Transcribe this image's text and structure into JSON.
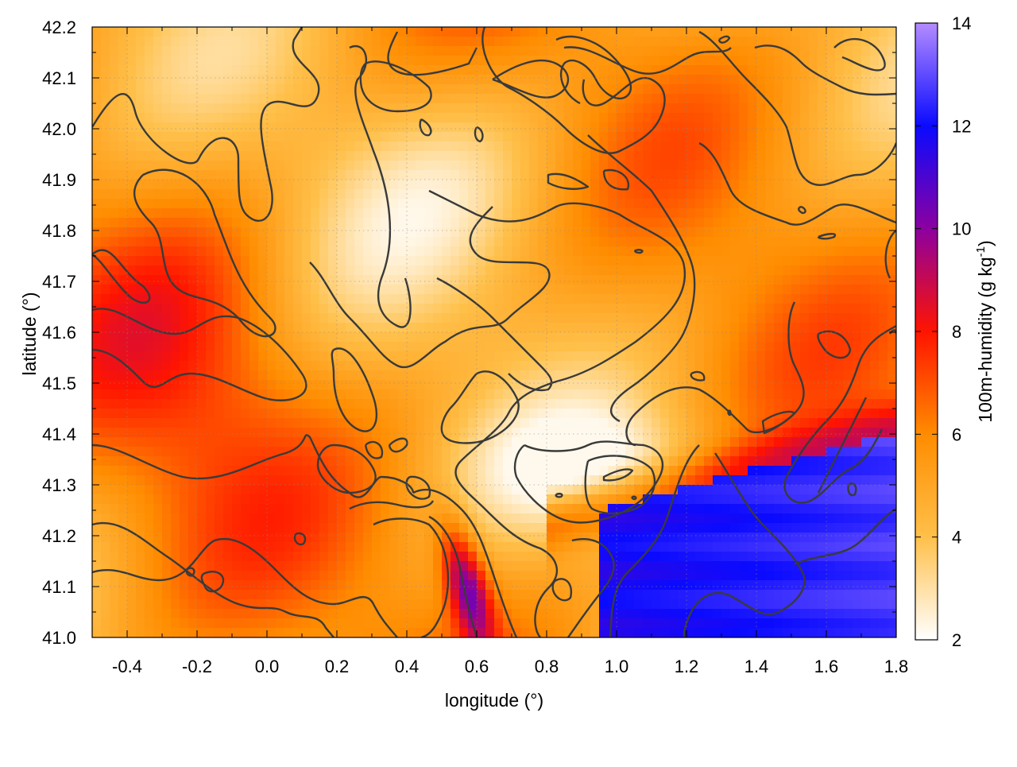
{
  "chart_data": {
    "type": "heatmap",
    "title": "",
    "xlabel": "longitude (°)",
    "ylabel": "latitude (°)",
    "colorbar_label_main": "100m-humidity (g kg",
    "colorbar_label_sup": "-1",
    "colorbar_label_end": ")",
    "xlim": [
      -0.5,
      1.8
    ],
    "ylim": [
      41.0,
      42.2
    ],
    "zlim": [
      2,
      14
    ],
    "x_ticks": [
      -0.4,
      -0.2,
      0.0,
      0.2,
      0.4,
      0.6,
      0.8,
      1.0,
      1.2,
      1.4,
      1.6,
      1.8
    ],
    "x_tick_labels": [
      "-0.4",
      "-0.2",
      "0.0",
      "0.2",
      "0.4",
      "0.6",
      "0.8",
      "1.0",
      "1.2",
      "1.4",
      "1.6",
      "1.8"
    ],
    "y_ticks": [
      41.0,
      41.1,
      41.2,
      41.3,
      41.4,
      41.5,
      41.6,
      41.7,
      41.8,
      41.9,
      42.0,
      42.1,
      42.2
    ],
    "y_tick_labels": [
      "41.0",
      "41.1",
      "41.2",
      "41.3",
      "41.4",
      "41.5",
      "41.6",
      "41.7",
      "41.8",
      "41.9",
      "42.0",
      "42.1",
      "42.2"
    ],
    "colorbar_ticks": [
      2,
      4,
      6,
      8,
      10,
      12,
      14
    ],
    "colorbar_tick_labels": [
      "2",
      "4",
      "6",
      "8",
      "10",
      "12",
      "14"
    ],
    "colormap": [
      {
        "value": 2,
        "color": "#ffffff"
      },
      {
        "value": 4,
        "color": "#ffc04a"
      },
      {
        "value": 6,
        "color": "#ff8c00"
      },
      {
        "value": 8,
        "color": "#ff1400"
      },
      {
        "value": 10,
        "color": "#8c00a0"
      },
      {
        "value": 12,
        "color": "#0a0aff"
      },
      {
        "value": 14,
        "color": "#b48cff"
      }
    ],
    "grid": true,
    "contour_color": "#3a3a3a"
  }
}
